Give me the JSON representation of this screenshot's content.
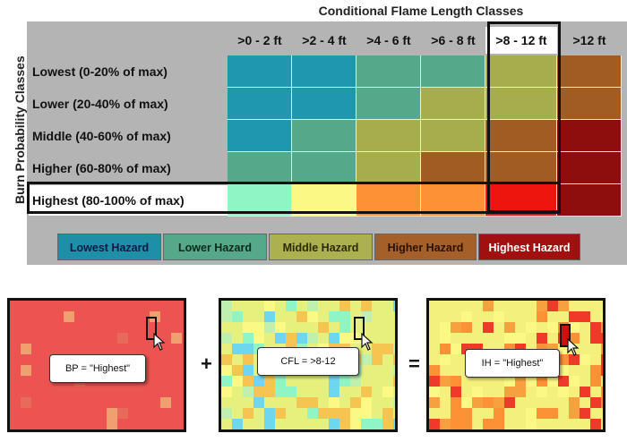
{
  "column_title": "Conditional Flame Length Classes",
  "row_title": "Burn Probability Classes",
  "columns": [
    ">0 - 2 ft",
    ">2 - 4 ft",
    ">4 - 6 ft",
    ">6 - 8 ft",
    ">8 - 12 ft",
    ">12 ft"
  ],
  "rows": [
    {
      "label": "Lowest (0-20% of max)",
      "cells": [
        0,
        0,
        1,
        1,
        2,
        3
      ]
    },
    {
      "label": "Lower (20-40% of max)",
      "cells": [
        0,
        0,
        1,
        2,
        2,
        3
      ]
    },
    {
      "label": "Middle (40-60% of max)",
      "cells": [
        0,
        1,
        2,
        2,
        3,
        4
      ]
    },
    {
      "label": "Higher (60-80% of max)",
      "cells": [
        1,
        1,
        2,
        3,
        3,
        4
      ]
    },
    {
      "label": "Highest (80-100% of max)",
      "cells": [
        5,
        6,
        7,
        7,
        8,
        4
      ]
    }
  ],
  "cell_colors": [
    "#1f97ad",
    "#55a98a",
    "#a6ad4c",
    "#a15c22",
    "#8e0e0e",
    "#8ff5c4",
    "#fbf884",
    "#fc9135",
    "#ef150f"
  ],
  "header_highlight_color": "#ffffff",
  "highest_label_bg": "#ffffff",
  "legend": [
    {
      "label": "Lowest Hazard",
      "color": "#1f8fa8",
      "text_color": "#0b1a44"
    },
    {
      "label": "Lower Hazard",
      "color": "#55a98a",
      "text_color": "#0b2a1a"
    },
    {
      "label": "Middle Hazard",
      "color": "#adb04e",
      "text_color": "#2b2b00"
    },
    {
      "label": "Higher Hazard",
      "color": "#a5602a",
      "text_color": "#2a1200"
    },
    {
      "label": "Highest Hazard",
      "color": "#a01010",
      "text_color": "#ffffff"
    }
  ],
  "panels": [
    {
      "name": "burn-probability-map",
      "label": "BP = \"Highest\"",
      "base": "#ec5451"
    },
    {
      "name": "flame-length-map",
      "label": "CFL = >8-12",
      "base": "#e6f07c"
    },
    {
      "name": "hazard-map",
      "label": "IH = \"Highest\"",
      "base": "#f4f07c"
    }
  ],
  "operators": [
    "+",
    "="
  ]
}
